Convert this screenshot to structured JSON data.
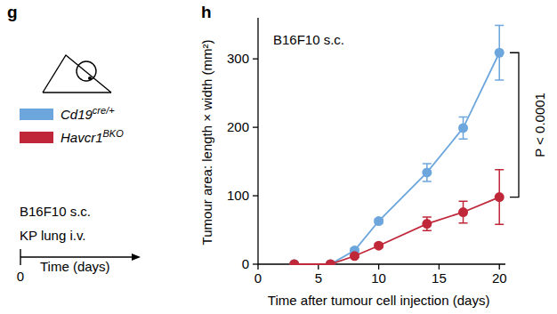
{
  "chart_data": {
    "type": "line",
    "title": "B16F10 s.c.",
    "panel_labels": [
      "g",
      "h"
    ],
    "schematic": {
      "lines": [
        "B16F10 s.c.",
        "KP lung i.v."
      ],
      "timeline_label": "Time (days)",
      "timeline_start": 0
    },
    "x_label": "Time after tumour cell injection (days)",
    "y_label": "Tumour area: length × width (mm²)",
    "annotations": [
      "P < 0.0001"
    ],
    "x": [
      3,
      6,
      8,
      10,
      14,
      17,
      20
    ],
    "series": [
      {
        "name": "Cd19cre/+",
        "color": "#6ca6dd",
        "marker": "circle",
        "values": [
          0,
          0,
          20,
          63,
          134,
          199,
          309
        ],
        "errors": [
          0,
          0,
          3,
          3,
          13,
          16,
          40
        ]
      },
      {
        "name": "Havcr1BKO",
        "color": "#c0283a",
        "marker": "circle",
        "values": [
          0,
          0,
          12,
          27,
          59,
          76,
          98
        ],
        "errors": [
          0,
          0,
          2,
          3,
          10,
          16,
          40
        ]
      }
    ],
    "xlim": [
      0,
      20.5
    ],
    "ylim": [
      0,
      360
    ],
    "xticks": [
      0,
      5,
      10,
      15,
      20
    ],
    "yticks": [
      0,
      100,
      200,
      300
    ],
    "grid": false
  }
}
